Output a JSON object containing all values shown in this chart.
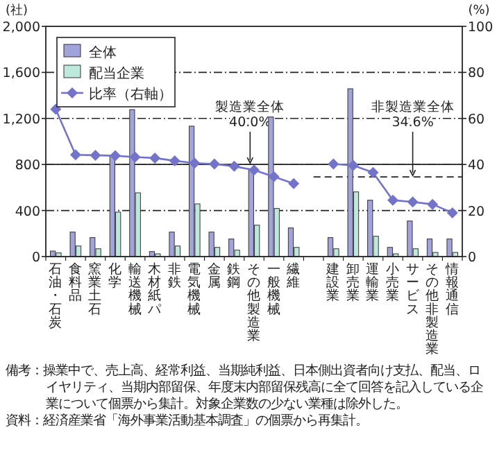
{
  "chart_data": {
    "type": "bar",
    "ylabel": "(社)",
    "y2label": "(%)",
    "categories": [
      "石油・石炭",
      "食料品",
      "窯業土石",
      "化学",
      "輸送機械",
      "木材紙パ",
      "非鉄",
      "電気機械",
      "金属",
      "鉄鋼",
      "その他製造業",
      "一般機械",
      "繊維",
      null,
      "建設業",
      "卸売業",
      "運輸業",
      "小売業",
      "サービス",
      "その他非製造業",
      "情報通信"
    ],
    "series": [
      {
        "name": "全体",
        "color": "#a3a3dc",
        "values": [
          48,
          213,
          165,
          871,
          1277,
          44,
          213,
          1133,
          213,
          153,
          763,
          1213,
          249,
          null,
          165,
          1458,
          490,
          80,
          309,
          153,
          153
        ]
      },
      {
        "name": "配当企業",
        "color": "#bfe8dc",
        "values": [
          32,
          92,
          68,
          386,
          554,
          24,
          92,
          458,
          80,
          56,
          273,
          418,
          80,
          null,
          68,
          562,
          177,
          24,
          68,
          36,
          36
        ]
      },
      {
        "name": "比率（右軸）",
        "type": "line",
        "axis": "y2",
        "color": "#7373c9",
        "marker": "diamond",
        "values": [
          64,
          44.2,
          44,
          43.8,
          43.2,
          42.8,
          41.6,
          40.6,
          40.2,
          39.2,
          37.6,
          34.7,
          31.7,
          null,
          40.2,
          39.6,
          36.5,
          24.5,
          23.7,
          22.7,
          19
        ]
      }
    ],
    "ylim": [
      0,
      2000
    ],
    "yticks": [
      0,
      {
        "value": 400,
        "label": "400"
      },
      {
        "value": 800,
        "label": "800"
      },
      {
        "value": 1200,
        "label": "1,200"
      },
      {
        "value": 1600,
        "label": "1,600"
      },
      {
        "value": 2000,
        "label": "2,000"
      }
    ],
    "y2lim": [
      0,
      100
    ],
    "y2ticks": [
      0,
      20,
      40,
      60,
      80,
      100
    ],
    "grid": "y",
    "legend": "top left",
    "ref_lines": [
      {
        "axis": "y2",
        "value": 40.0,
        "label": "製造業全体\n40.0%",
        "line_style": "solid"
      },
      {
        "axis": "y2",
        "value": 34.6,
        "label": "非製造業全体\n34.6%",
        "line_style": "dashed"
      }
    ],
    "annotations": [
      "備考：操業中で、売上高、経常利益、当期純利益、日本側出資者向け支払、配当、ロイヤリティ、当期内部留保、年度末内部留保残高に全て回答を記入している企業について個票から集計。対象企業数の少ない業種は除外した。",
      "資料：経済産業省「海外事業活動基本調査」の個票から再集計。"
    ]
  }
}
